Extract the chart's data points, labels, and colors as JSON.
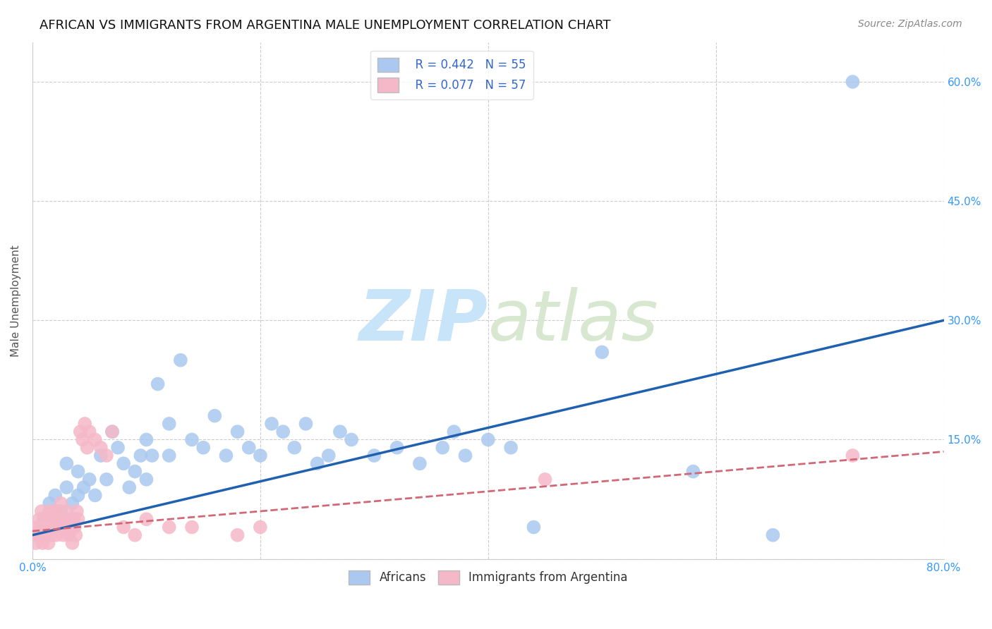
{
  "title": "AFRICAN VS IMMIGRANTS FROM ARGENTINA MALE UNEMPLOYMENT CORRELATION CHART",
  "source": "Source: ZipAtlas.com",
  "ylabel": "Male Unemployment",
  "xlim": [
    0.0,
    0.8
  ],
  "ylim": [
    0.0,
    0.65
  ],
  "xticks": [
    0.0,
    0.2,
    0.4,
    0.6,
    0.8
  ],
  "xticklabels": [
    "0.0%",
    "",
    "",
    "",
    "80.0%"
  ],
  "yticks": [
    0.0,
    0.15,
    0.3,
    0.45,
    0.6
  ],
  "yticklabels": [
    "",
    "15.0%",
    "30.0%",
    "45.0%",
    "60.0%"
  ],
  "grid_color": "#cccccc",
  "background_color": "#ffffff",
  "africans_color": "#aac8f0",
  "argentina_color": "#f5b8c8",
  "africans_line_color": "#2060b0",
  "argentina_line_color": "#d06878",
  "R_africans": 0.442,
  "N_africans": 55,
  "R_argentina": 0.077,
  "N_argentina": 57,
  "africans_x": [
    0.01,
    0.015,
    0.02,
    0.025,
    0.03,
    0.03,
    0.035,
    0.04,
    0.04,
    0.045,
    0.05,
    0.055,
    0.06,
    0.065,
    0.07,
    0.075,
    0.08,
    0.085,
    0.09,
    0.095,
    0.1,
    0.1,
    0.105,
    0.11,
    0.12,
    0.12,
    0.13,
    0.14,
    0.15,
    0.16,
    0.17,
    0.18,
    0.19,
    0.2,
    0.21,
    0.22,
    0.23,
    0.24,
    0.25,
    0.26,
    0.27,
    0.28,
    0.3,
    0.32,
    0.34,
    0.36,
    0.37,
    0.38,
    0.4,
    0.42,
    0.44,
    0.5,
    0.58,
    0.65,
    0.72
  ],
  "africans_y": [
    0.05,
    0.07,
    0.08,
    0.06,
    0.09,
    0.12,
    0.07,
    0.08,
    0.11,
    0.09,
    0.1,
    0.08,
    0.13,
    0.1,
    0.16,
    0.14,
    0.12,
    0.09,
    0.11,
    0.13,
    0.15,
    0.1,
    0.13,
    0.22,
    0.17,
    0.13,
    0.25,
    0.15,
    0.14,
    0.18,
    0.13,
    0.16,
    0.14,
    0.13,
    0.17,
    0.16,
    0.14,
    0.17,
    0.12,
    0.13,
    0.16,
    0.15,
    0.13,
    0.14,
    0.12,
    0.14,
    0.16,
    0.13,
    0.15,
    0.14,
    0.04,
    0.26,
    0.11,
    0.03,
    0.6
  ],
  "argentina_x": [
    0.002,
    0.003,
    0.004,
    0.005,
    0.006,
    0.007,
    0.008,
    0.009,
    0.01,
    0.011,
    0.012,
    0.013,
    0.014,
    0.015,
    0.016,
    0.017,
    0.018,
    0.019,
    0.02,
    0.021,
    0.022,
    0.023,
    0.024,
    0.025,
    0.026,
    0.027,
    0.028,
    0.029,
    0.03,
    0.031,
    0.032,
    0.033,
    0.034,
    0.035,
    0.036,
    0.037,
    0.038,
    0.039,
    0.04,
    0.042,
    0.044,
    0.046,
    0.048,
    0.05,
    0.055,
    0.06,
    0.065,
    0.07,
    0.08,
    0.09,
    0.1,
    0.12,
    0.14,
    0.18,
    0.2,
    0.45,
    0.72
  ],
  "argentina_y": [
    0.03,
    0.02,
    0.04,
    0.03,
    0.05,
    0.04,
    0.06,
    0.02,
    0.04,
    0.03,
    0.05,
    0.04,
    0.02,
    0.06,
    0.04,
    0.03,
    0.05,
    0.04,
    0.06,
    0.03,
    0.04,
    0.06,
    0.05,
    0.07,
    0.04,
    0.03,
    0.05,
    0.04,
    0.06,
    0.04,
    0.03,
    0.05,
    0.04,
    0.02,
    0.05,
    0.04,
    0.03,
    0.06,
    0.05,
    0.16,
    0.15,
    0.17,
    0.14,
    0.16,
    0.15,
    0.14,
    0.13,
    0.16,
    0.04,
    0.03,
    0.05,
    0.04,
    0.04,
    0.03,
    0.04,
    0.1,
    0.13
  ],
  "africans_regline_x": [
    0.0,
    0.8
  ],
  "africans_regline_y": [
    0.03,
    0.3
  ],
  "argentina_regline_x": [
    0.0,
    0.8
  ],
  "argentina_regline_y": [
    0.035,
    0.135
  ],
  "watermark_zip": "ZIP",
  "watermark_atlas": "atlas",
  "title_fontsize": 13,
  "axis_label_fontsize": 11,
  "tick_fontsize": 11,
  "legend_fontsize": 12
}
